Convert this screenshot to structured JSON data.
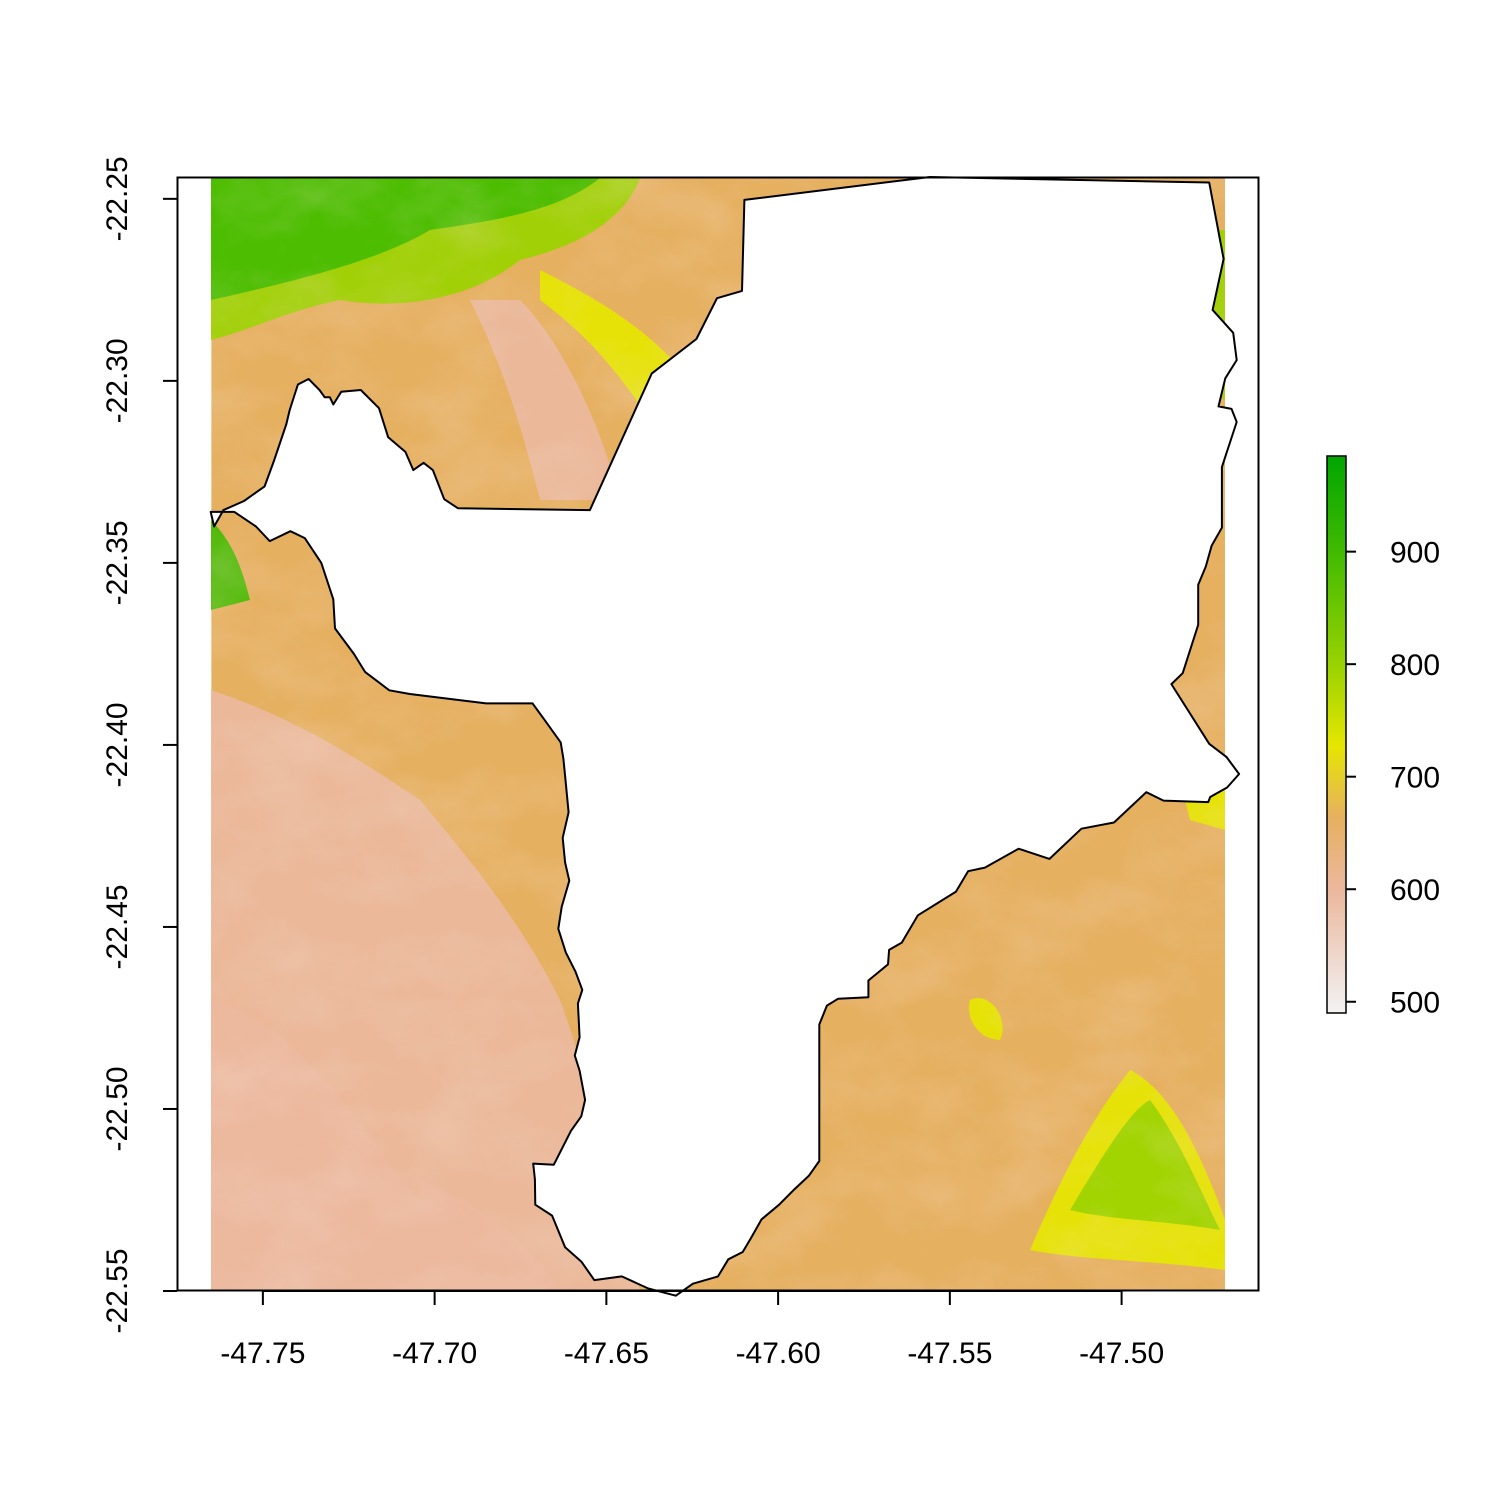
{
  "chart_data": {
    "type": "heatmap",
    "title": "",
    "xlabel": "",
    "ylabel": "",
    "xlim": [
      -47.775,
      -47.46
    ],
    "ylim": [
      -22.55,
      -22.244
    ],
    "raster_extent": {
      "x": [
        -47.765,
        -47.465
      ],
      "y": [
        -22.55,
        -22.244
      ]
    },
    "x_ticks": [
      -47.75,
      -47.7,
      -47.65,
      -47.6,
      -47.55,
      -47.5
    ],
    "x_tick_labels": [
      "-47.75",
      "-47.70",
      "-47.65",
      "-47.60",
      "-47.55",
      "-47.50"
    ],
    "y_ticks": [
      -22.25,
      -22.3,
      -22.35,
      -22.4,
      -22.45,
      -22.5,
      -22.55
    ],
    "y_tick_labels": [
      "-22.25",
      "-22.30",
      "-22.35",
      "-22.40",
      "-22.45",
      "-22.50",
      "-22.55"
    ],
    "legend": {
      "placement": "right",
      "range": [
        490,
        985
      ],
      "ticks": [
        500,
        600,
        700,
        800,
        900
      ],
      "tick_labels": [
        "500",
        "600",
        "700",
        "800",
        "900"
      ],
      "colors": [
        {
          "value": 490,
          "color": "#f2f2f2"
        },
        {
          "value": 600,
          "color": "#ecb89e"
        },
        {
          "value": 665,
          "color": "#e6b061"
        },
        {
          "value": 730,
          "color": "#e6e600"
        },
        {
          "value": 800,
          "color": "#9bd300"
        },
        {
          "value": 900,
          "color": "#44bb00"
        },
        {
          "value": 985,
          "color": "#00a600"
        }
      ]
    },
    "masked_polygon": [
      [
        -47.7652,
        -22.336
      ],
      [
        -47.7642,
        -22.34
      ],
      [
        -47.7615,
        -22.3355
      ],
      [
        -47.7555,
        -22.333
      ],
      [
        -47.7495,
        -22.329
      ],
      [
        -47.7468,
        -22.322
      ],
      [
        -47.7432,
        -22.312
      ],
      [
        -47.7422,
        -22.308
      ],
      [
        -47.7398,
        -22.301
      ],
      [
        -47.7367,
        -22.2995
      ],
      [
        -47.7335,
        -22.3025
      ],
      [
        -47.732,
        -22.3045
      ],
      [
        -47.7305,
        -22.3045
      ],
      [
        -47.7295,
        -22.3065
      ],
      [
        -47.7272,
        -22.303
      ],
      [
        -47.7215,
        -22.3025
      ],
      [
        -47.7162,
        -22.3075
      ],
      [
        -47.7135,
        -22.3155
      ],
      [
        -47.7085,
        -22.3195
      ],
      [
        -47.7062,
        -22.3245
      ],
      [
        -47.7032,
        -22.3225
      ],
      [
        -47.7005,
        -22.3245
      ],
      [
        -47.6972,
        -22.3325
      ],
      [
        -47.6932,
        -22.335
      ],
      [
        -47.6548,
        -22.3355
      ],
      [
        -47.6368,
        -22.298
      ],
      [
        -47.6238,
        -22.2885
      ],
      [
        -47.6178,
        -22.2773
      ],
      [
        -47.6105,
        -22.2753
      ],
      [
        -47.6098,
        -22.2503
      ],
      [
        -47.5558,
        -22.244
      ],
      [
        -47.4745,
        -22.2455
      ],
      [
        -47.4703,
        -22.2665
      ],
      [
        -47.4735,
        -22.2805
      ],
      [
        -47.4675,
        -22.2868
      ],
      [
        -47.4665,
        -22.2943
      ],
      [
        -47.4698,
        -22.2993
      ],
      [
        -47.4718,
        -22.307
      ],
      [
        -47.468,
        -22.3077
      ],
      [
        -47.4665,
        -22.3113
      ],
      [
        -47.4708,
        -22.3237
      ],
      [
        -47.4708,
        -22.3403
      ],
      [
        -47.4738,
        -22.3453
      ],
      [
        -47.4755,
        -22.351
      ],
      [
        -47.4777,
        -22.356
      ],
      [
        -47.4777,
        -22.367
      ],
      [
        -47.4822,
        -22.3803
      ],
      [
        -47.4855,
        -22.3833
      ],
      [
        -47.4745,
        -22.3997
      ],
      [
        -47.4695,
        -22.4033
      ],
      [
        -47.4658,
        -22.408
      ],
      [
        -47.4693,
        -22.4117
      ],
      [
        -47.4742,
        -22.4143
      ],
      [
        -47.4748,
        -22.4157
      ],
      [
        -47.4878,
        -22.4153
      ],
      [
        -47.4928,
        -22.413
      ],
      [
        -47.5022,
        -22.4213
      ],
      [
        -47.5117,
        -22.423
      ],
      [
        -47.521,
        -22.4313
      ],
      [
        -47.53,
        -22.4285
      ],
      [
        -47.5398,
        -22.4337
      ],
      [
        -47.5447,
        -22.4347
      ],
      [
        -47.5482,
        -22.4403
      ],
      [
        -47.5593,
        -22.4468
      ],
      [
        -47.564,
        -22.4543
      ],
      [
        -47.5677,
        -22.4563
      ],
      [
        -47.568,
        -22.4603
      ],
      [
        -47.5737,
        -22.4647
      ],
      [
        -47.5737,
        -22.4693
      ],
      [
        -47.5825,
        -22.4697
      ],
      [
        -47.5858,
        -22.4716
      ],
      [
        -47.588,
        -22.4768
      ],
      [
        -47.588,
        -22.493
      ],
      [
        -47.588,
        -22.5143
      ],
      [
        -47.591,
        -22.5183
      ],
      [
        -47.5952,
        -22.522
      ],
      [
        -47.5997,
        -22.5263
      ],
      [
        -47.6048,
        -22.5303
      ],
      [
        -47.6078,
        -22.5353
      ],
      [
        -47.6103,
        -22.5393
      ],
      [
        -47.6145,
        -22.5413
      ],
      [
        -47.6175,
        -22.546
      ],
      [
        -47.6248,
        -22.548
      ],
      [
        -47.6298,
        -22.5513
      ],
      [
        -47.6378,
        -22.5493
      ],
      [
        -47.6455,
        -22.546
      ],
      [
        -47.6535,
        -22.547
      ],
      [
        -47.6572,
        -22.542
      ],
      [
        -47.662,
        -22.538
      ],
      [
        -47.6658,
        -22.5293
      ],
      [
        -47.6707,
        -22.5263
      ],
      [
        -47.6708,
        -22.5193
      ],
      [
        -47.6713,
        -22.515
      ],
      [
        -47.6653,
        -22.5153
      ],
      [
        -47.6603,
        -22.506
      ],
      [
        -47.6573,
        -22.502
      ],
      [
        -47.6562,
        -22.4975
      ],
      [
        -47.6578,
        -22.4895
      ],
      [
        -47.6592,
        -22.4853
      ],
      [
        -47.6578,
        -22.4803
      ],
      [
        -47.6583,
        -22.471
      ],
      [
        -47.657,
        -22.4673
      ],
      [
        -47.659,
        -22.4623
      ],
      [
        -47.6618,
        -22.457
      ],
      [
        -47.664,
        -22.4505
      ],
      [
        -47.663,
        -22.4445
      ],
      [
        -47.6608,
        -22.4373
      ],
      [
        -47.662,
        -22.4323
      ],
      [
        -47.6627,
        -22.4255
      ],
      [
        -47.661,
        -22.4185
      ],
      [
        -47.662,
        -22.4085
      ],
      [
        -47.6625,
        -22.4038
      ],
      [
        -47.6633,
        -22.3993
      ],
      [
        -47.668,
        -22.3931
      ],
      [
        -47.6715,
        -22.3886
      ],
      [
        -47.685,
        -22.3886
      ],
      [
        -47.6945,
        -22.3875
      ],
      [
        -47.7072,
        -22.386
      ],
      [
        -47.7132,
        -22.385
      ],
      [
        -47.7202,
        -22.38
      ],
      [
        -47.7235,
        -22.375
      ],
      [
        -47.729,
        -22.368
      ],
      [
        -47.7295,
        -22.36
      ],
      [
        -47.733,
        -22.35
      ],
      [
        -47.7378,
        -22.3432
      ],
      [
        -47.742,
        -22.3413
      ],
      [
        -47.748,
        -22.344
      ],
      [
        -47.752,
        -22.34
      ],
      [
        -47.7583,
        -22.336
      ],
      [
        -47.7652,
        -22.336
      ]
    ]
  }
}
